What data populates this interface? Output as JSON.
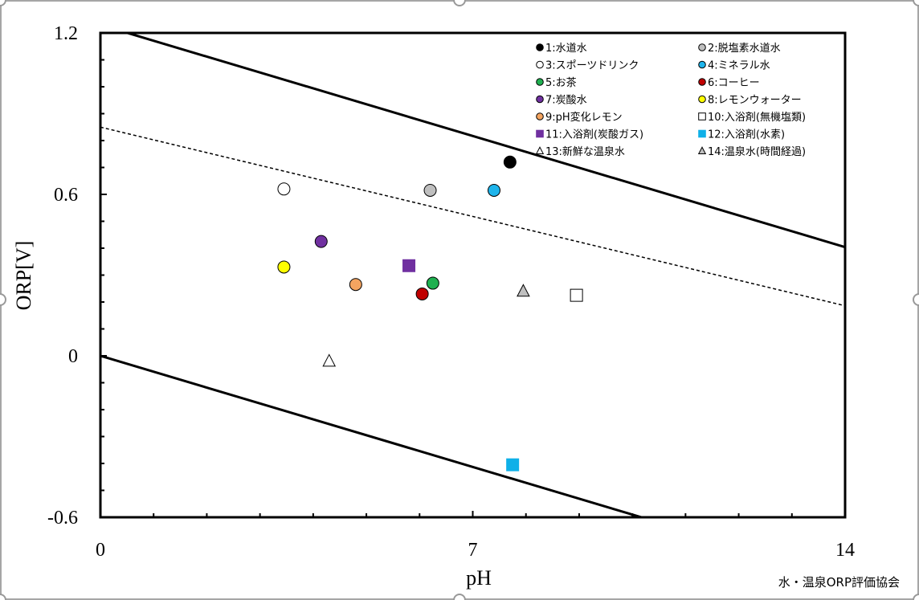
{
  "chart_data": {
    "type": "scatter",
    "xlabel": "pH",
    "ylabel": "ORP[V]",
    "xlim": [
      0,
      14
    ],
    "ylim": [
      -0.6,
      1.2
    ],
    "x_ticks": [
      "0",
      "7",
      "14"
    ],
    "y_ticks": [
      "1.2",
      "0.6",
      "0",
      "-0.6"
    ],
    "lines": [
      {
        "style": "solid",
        "x": [
          0,
          14
        ],
        "y": [
          1.23,
          0.404
        ]
      },
      {
        "style": "dashed",
        "x": [
          0,
          14
        ],
        "y": [
          0.85,
          0.186
        ]
      },
      {
        "style": "solid",
        "x": [
          0,
          14
        ],
        "y": [
          0.0,
          -0.826
        ]
      }
    ],
    "series": [
      {
        "name": "1:水道水",
        "marker": "circle",
        "fill": "#000000",
        "points": [
          [
            7.7,
            0.72
          ]
        ]
      },
      {
        "name": "2:脱塩素水道水",
        "marker": "circle",
        "fill": "#bfbfbf",
        "points": [
          [
            6.2,
            0.615
          ]
        ]
      },
      {
        "name": "3:スポーツドリンク",
        "marker": "circle",
        "fill": "#ffffff",
        "points": [
          [
            3.45,
            0.62
          ]
        ]
      },
      {
        "name": "4:ミネラル水",
        "marker": "circle",
        "fill": "#1eb4eb",
        "points": [
          [
            7.4,
            0.615
          ]
        ]
      },
      {
        "name": "5:お茶",
        "marker": "circle",
        "fill": "#1fb050",
        "points": [
          [
            6.25,
            0.27
          ]
        ]
      },
      {
        "name": "6:コーヒー",
        "marker": "circle",
        "fill": "#c00000",
        "points": [
          [
            6.05,
            0.23
          ]
        ]
      },
      {
        "name": "7:炭酸水",
        "marker": "circle",
        "fill": "#7030a0",
        "points": [
          [
            4.15,
            0.425
          ]
        ]
      },
      {
        "name": "8:レモンウォーター",
        "marker": "circle",
        "fill": "#ffff00",
        "points": [
          [
            3.45,
            0.33
          ]
        ]
      },
      {
        "name": "9:pH変化レモン",
        "marker": "circle",
        "fill": "#f4a460",
        "points": [
          [
            4.8,
            0.265
          ]
        ]
      },
      {
        "name": "10:入浴剤(無機塩類)",
        "marker": "square",
        "fill": "#ffffff",
        "points": [
          [
            8.95,
            0.225
          ]
        ]
      },
      {
        "name": "11:入浴剤(炭酸ガス)",
        "marker": "square",
        "fill": "#7030a0",
        "points": [
          [
            5.8,
            0.335
          ]
        ]
      },
      {
        "name": "12:入浴剤(水素)",
        "marker": "square",
        "fill": "#0fb0e8",
        "points": [
          [
            7.75,
            -0.405
          ]
        ]
      },
      {
        "name": "13:新鮮な温泉水",
        "marker": "triangle",
        "fill": "#ffffff",
        "points": [
          [
            4.3,
            -0.02
          ]
        ]
      },
      {
        "name": "14:温泉水(時間経過)",
        "marker": "triangle",
        "fill": "#bfbfbf",
        "points": [
          [
            7.95,
            0.24
          ]
        ]
      }
    ],
    "legend_position": "top-right",
    "credit": "水・温泉ORP評価協会"
  }
}
